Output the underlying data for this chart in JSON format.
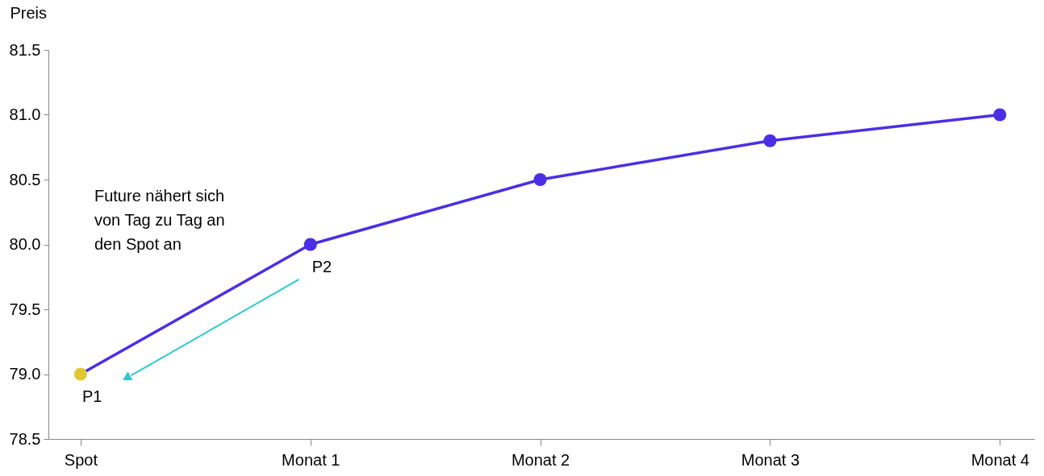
{
  "chart_data": {
    "type": "line",
    "ylabel": "Preis",
    "categories": [
      "Spot",
      "Monat 1",
      "Monat 2",
      "Monat 3",
      "Monat 4"
    ],
    "series": [
      {
        "color": "#4a2fe6",
        "colors": [
          "#e0c832",
          "#4a2fe6",
          "#4a2fe6",
          "#4a2fe6",
          "#4a2fe6"
        ],
        "values": [
          79.0,
          80.0,
          80.5,
          80.8,
          81.0
        ]
      }
    ],
    "ylim": [
      78.5,
      81.5
    ],
    "yticks": [
      {
        "value": 78.5,
        "label": "78.5"
      },
      {
        "value": 79,
        "label": "79.0"
      },
      79.5,
      {
        "value": 80,
        "label": "80.0"
      },
      80.5,
      {
        "value": 81,
        "label": "81.0"
      },
      81.5
    ],
    "marker": "circle",
    "grid": false,
    "annotations": [
      "Future nähert sich von Tag zu Tag an den Spot an",
      {
        "text": "P1",
        "x": "Spot",
        "y": 79.0
      },
      {
        "text": "P2",
        "x": "Monat 1",
        "y": 80.0
      }
    ]
  }
}
